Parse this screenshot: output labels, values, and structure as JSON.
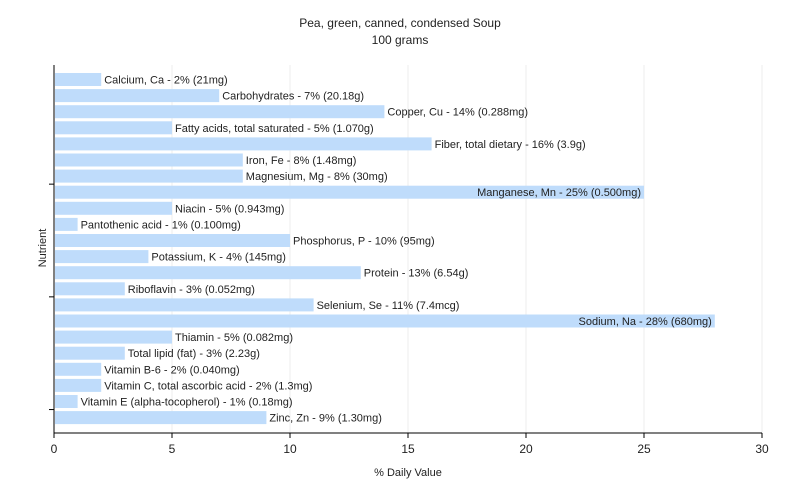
{
  "chart_data": {
    "type": "bar",
    "orientation": "horizontal",
    "title": "Pea, green, canned, condensed Soup",
    "subtitle": "100 grams",
    "xlabel": "% Daily Value",
    "ylabel": "Nutrient",
    "xlim": [
      0,
      30
    ],
    "xticks": [
      0,
      5,
      10,
      15,
      20,
      25,
      30
    ],
    "grid": true,
    "bar_color": "#bfdcfb",
    "categories": [
      "Calcium, Ca",
      "Carbohydrates",
      "Copper, Cu",
      "Fatty acids, total saturated",
      "Fiber, total dietary",
      "Iron, Fe",
      "Magnesium, Mg",
      "Manganese, Mn",
      "Niacin",
      "Pantothenic acid",
      "Phosphorus, P",
      "Potassium, K",
      "Protein",
      "Riboflavin",
      "Selenium, Se",
      "Sodium, Na",
      "Thiamin",
      "Total lipid (fat)",
      "Vitamin B-6",
      "Vitamin C, total ascorbic acid",
      "Vitamin E (alpha-tocopherol)",
      "Zinc, Zn"
    ],
    "values": [
      2,
      7,
      14,
      5,
      16,
      8,
      8,
      25,
      5,
      1,
      10,
      4,
      13,
      3,
      11,
      28,
      5,
      3,
      2,
      2,
      1,
      9
    ],
    "labels": [
      "Calcium, Ca - 2% (21mg)",
      "Carbohydrates - 7% (20.18g)",
      "Copper, Cu - 14% (0.288mg)",
      "Fatty acids, total saturated - 5% (1.070g)",
      "Fiber, total dietary - 16% (3.9g)",
      "Iron, Fe - 8% (1.48mg)",
      "Magnesium, Mg - 8% (30mg)",
      "Manganese, Mn - 25% (0.500mg)",
      "Niacin - 5% (0.943mg)",
      "Pantothenic acid - 1% (0.100mg)",
      "Phosphorus, P - 10% (95mg)",
      "Potassium, K - 4% (145mg)",
      "Protein - 13% (6.54g)",
      "Riboflavin - 3% (0.052mg)",
      "Selenium, Se - 11% (7.4mcg)",
      "Sodium, Na - 28% (680mg)",
      "Thiamin - 5% (0.082mg)",
      "Total lipid (fat) - 3% (2.23g)",
      "Vitamin B-6 - 2% (0.040mg)",
      "Vitamin C, total ascorbic acid - 2% (1.3mg)",
      "Vitamin E (alpha-tocopherol) - 1% (0.18mg)",
      "Zinc, Zn - 9% (1.30mg)"
    ]
  }
}
